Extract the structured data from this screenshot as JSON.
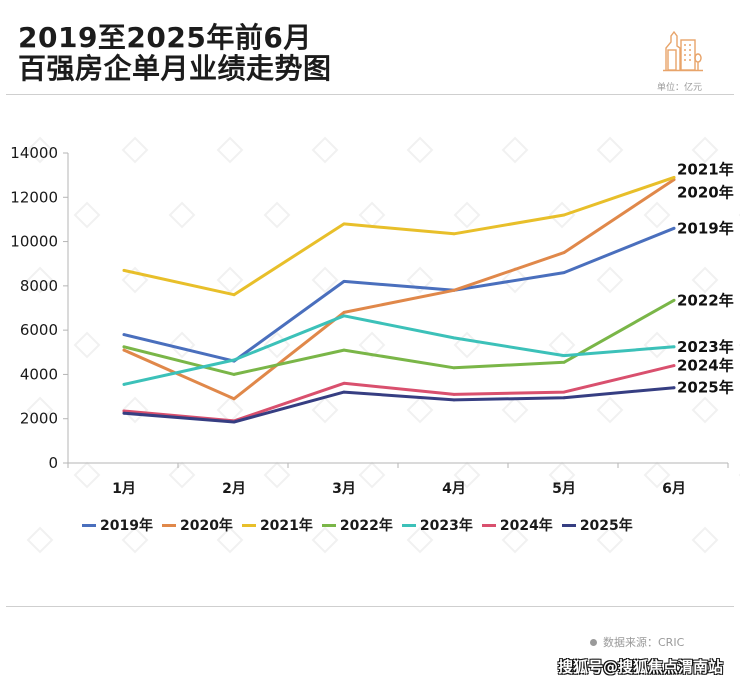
{
  "header": {
    "title_line1": "2019至2025年前6月",
    "title_line2": "百强房企单月业绩走势图",
    "unit": "单位：亿元",
    "logo_icon": "buildings-icon",
    "logo_color": "#e8a46a"
  },
  "footer": {
    "source": "数据来源：CRIC",
    "watermark": "搜狐号@搜狐焦点渭南站"
  },
  "chart_data": {
    "type": "line",
    "title": "2019至2025年前6月百强房企单月业绩走势图",
    "xlabel": "",
    "ylabel": "",
    "unit": "亿元",
    "categories": [
      "1月",
      "2月",
      "3月",
      "4月",
      "5月",
      "6月"
    ],
    "ylim": [
      0,
      14000
    ],
    "yticks": [
      "0",
      "2000",
      "4000",
      "6000",
      "8000",
      "10000",
      "12000",
      "14000"
    ],
    "grid": false,
    "legend": "bottom",
    "series": [
      {
        "name": "2019年",
        "color": "#4a6fbd",
        "values": [
          5800,
          4600,
          8200,
          7800,
          8600,
          10600
        ]
      },
      {
        "name": "2020年",
        "color": "#e0884a",
        "values": [
          5100,
          2900,
          6800,
          7800,
          9500,
          12800
        ]
      },
      {
        "name": "2021年",
        "color": "#e8bf2a",
        "values": [
          8700,
          7600,
          10800,
          10350,
          11200,
          12900
        ]
      },
      {
        "name": "2022年",
        "color": "#7ab648",
        "values": [
          5250,
          4000,
          5100,
          4300,
          4550,
          7350
        ]
      },
      {
        "name": "2023年",
        "color": "#3cc1b9",
        "values": [
          3550,
          4650,
          6650,
          5650,
          4850,
          5250
        ]
      },
      {
        "name": "2024年",
        "color": "#d9506e",
        "values": [
          2350,
          1900,
          3600,
          3100,
          3200,
          4400
        ]
      },
      {
        "name": "2025年",
        "color": "#363e82",
        "values": [
          2250,
          1850,
          3200,
          2850,
          2950,
          3400
        ]
      }
    ],
    "end_labels": [
      "2021年",
      "2020年",
      "2019年",
      "2022年",
      "2023年",
      "2024年",
      "2025年"
    ]
  }
}
